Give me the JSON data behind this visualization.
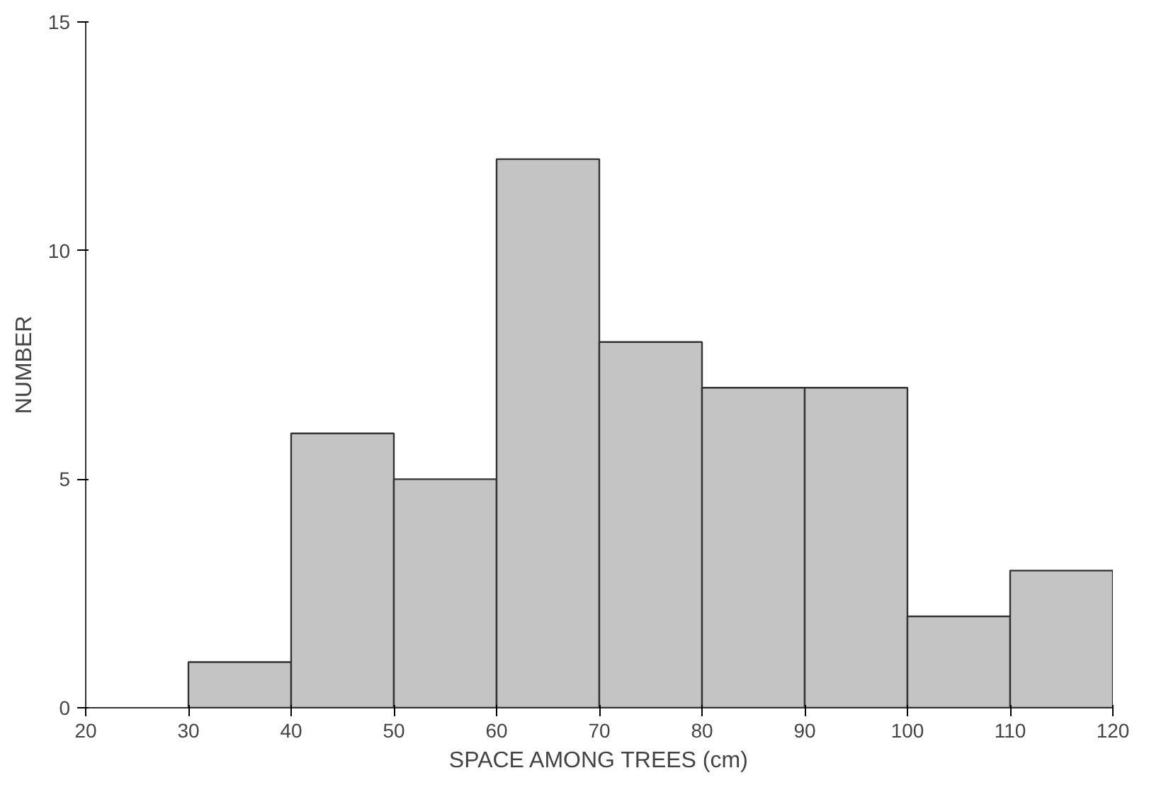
{
  "chart_data": {
    "type": "histogram",
    "xlabel": "SPACE AMONG TREES (cm)",
    "ylabel": "NUMBER",
    "bins": [
      30,
      40,
      50,
      60,
      70,
      80,
      90,
      100,
      110,
      120
    ],
    "values": [
      1,
      6,
      5,
      12,
      8,
      7,
      7,
      2,
      3
    ],
    "color": "#c4c4c4",
    "xlim": [
      20,
      120
    ],
    "xticks": [
      20,
      30,
      40,
      50,
      60,
      70,
      80,
      90,
      100,
      110,
      120
    ],
    "ylim": [
      0,
      15
    ],
    "yticks": [
      0,
      5,
      10,
      15
    ],
    "grid": false
  }
}
